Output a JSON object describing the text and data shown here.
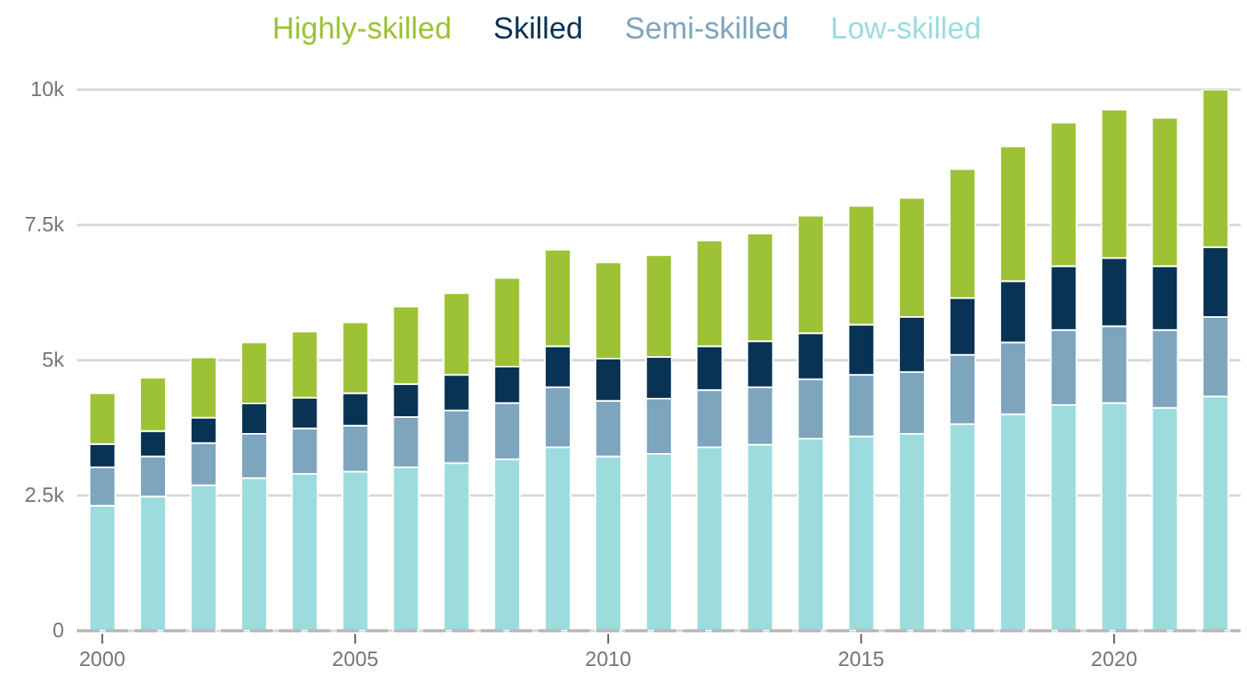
{
  "chart_data": {
    "type": "bar",
    "stacked": true,
    "legend": "top",
    "grid": "y",
    "categories": [
      "2000",
      null,
      null,
      null,
      null,
      "2005",
      null,
      null,
      null,
      null,
      "2010",
      null,
      null,
      null,
      null,
      "2015",
      null,
      null,
      null,
      null,
      "2020",
      null,
      null
    ],
    "ylim": [
      0,
      10000
    ],
    "yticks": [
      0,
      {
        "value": 2500,
        "label": "2.5k"
      },
      {
        "value": 5000,
        "label": "5k"
      },
      {
        "value": 7500,
        "label": "7.5k"
      },
      {
        "value": 10000,
        "label": "10k"
      }
    ],
    "series": [
      {
        "name": "Low-skilled",
        "color": "#9cdcdc",
        "values": [
          2310,
          2480,
          2690,
          2820,
          2900,
          2940,
          3020,
          3100,
          3170,
          3390,
          3220,
          3270,
          3390,
          3440,
          3550,
          3590,
          3640,
          3820,
          4000,
          4170,
          4210,
          4120,
          4330
        ]
      },
      {
        "name": "Semi-skilled",
        "color": "#7da5bd",
        "values": [
          710,
          740,
          780,
          820,
          840,
          850,
          930,
          970,
          1040,
          1110,
          1030,
          1020,
          1060,
          1060,
          1100,
          1140,
          1140,
          1280,
          1330,
          1390,
          1420,
          1440,
          1470
        ]
      },
      {
        "name": "Skilled",
        "color": "#083354",
        "values": [
          430,
          470,
          470,
          560,
          570,
          600,
          610,
          660,
          670,
          760,
          780,
          770,
          810,
          850,
          850,
          930,
          1020,
          1050,
          1130,
          1180,
          1260,
          1180,
          1290
        ]
      },
      {
        "name": "Highly-skilled",
        "color": "#9dc236",
        "values": [
          940,
          990,
          1110,
          1130,
          1220,
          1310,
          1430,
          1510,
          1640,
          1780,
          1780,
          1880,
          1950,
          1990,
          2170,
          2190,
          2200,
          2380,
          2490,
          2650,
          2740,
          2740,
          2910
        ]
      }
    ]
  }
}
